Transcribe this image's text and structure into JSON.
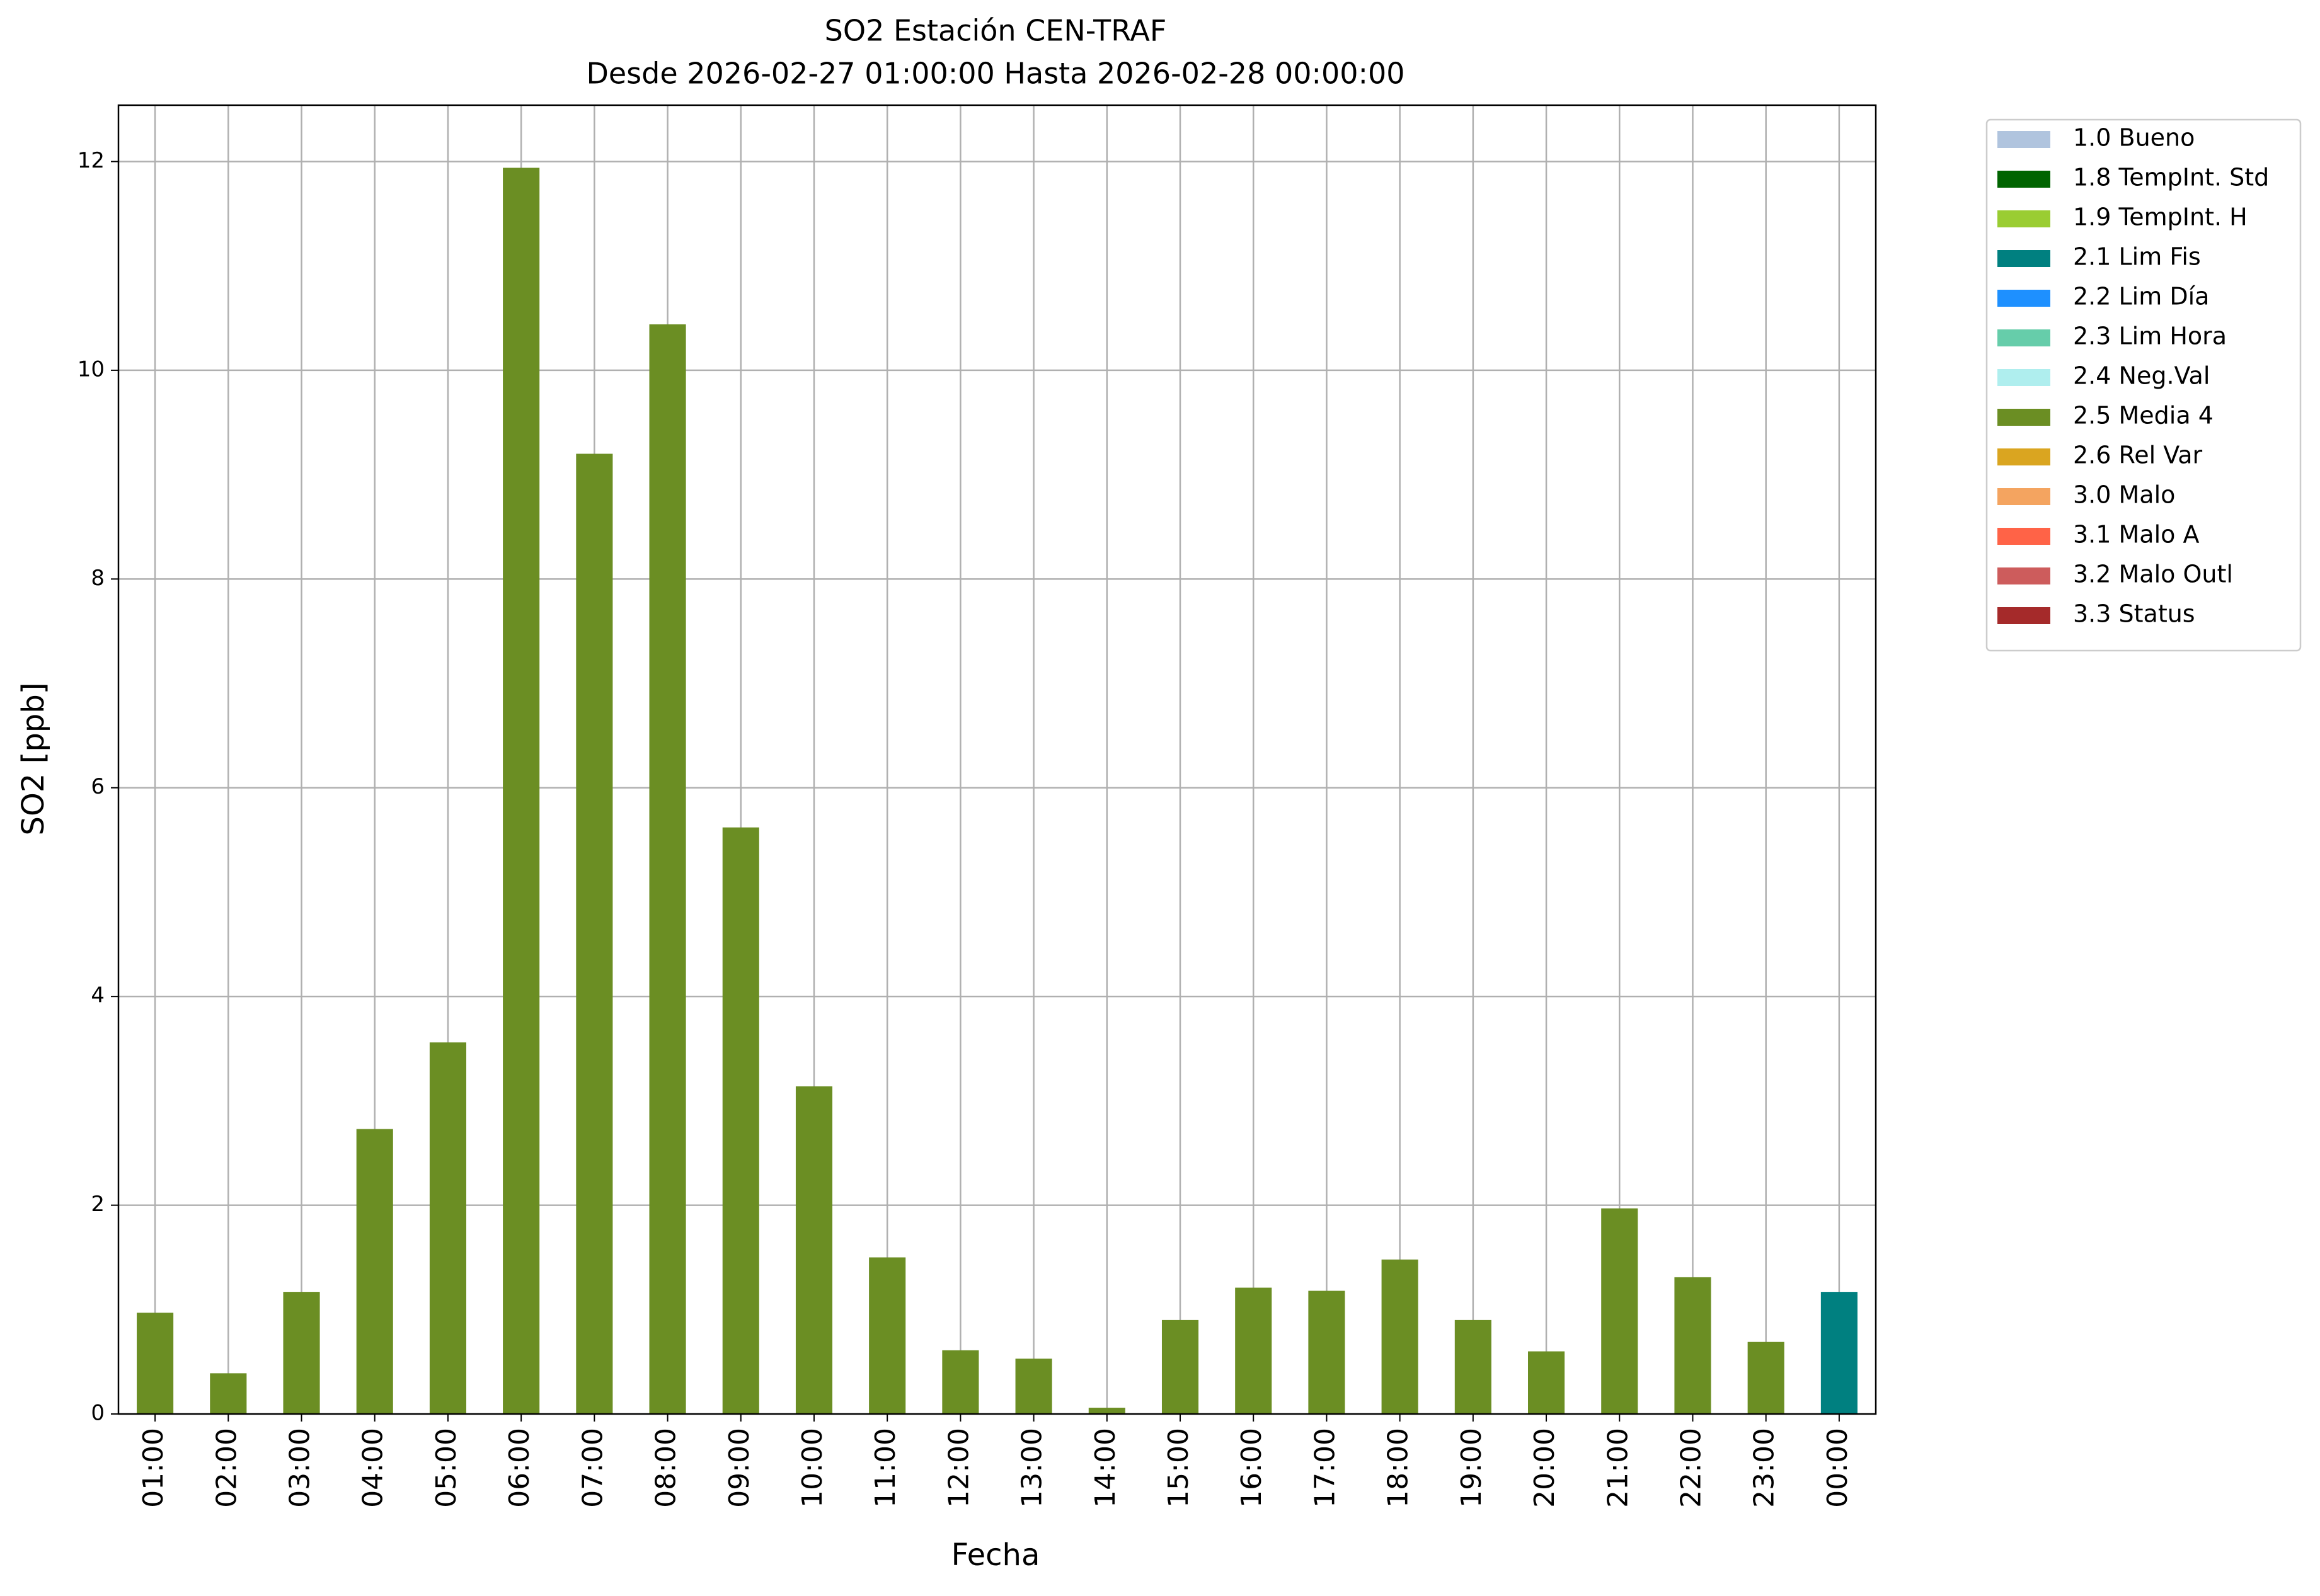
{
  "chart_data": {
    "type": "bar",
    "title": "SO2 Estación CEN-TRAF",
    "subtitle": "Desde 2026-02-27 01:00:00 Hasta 2026-02-28 00:00:00",
    "x_label": "Fecha",
    "y_label": "SO2 [ppb]",
    "categories": [
      "01:00",
      "02:00",
      "03:00",
      "04:00",
      "05:00",
      "06:00",
      "07:00",
      "08:00",
      "09:00",
      "10:00",
      "11:00",
      "12:00",
      "13:00",
      "14:00",
      "15:00",
      "16:00",
      "17:00",
      "18:00",
      "19:00",
      "20:00",
      "21:00",
      "22:00",
      "23:00",
      "00:00"
    ],
    "series": [
      {
        "name": "1.0 Bueno",
        "color": "#b0c4de",
        "values": [
          null,
          null,
          null,
          null,
          null,
          null,
          null,
          null,
          null,
          null,
          null,
          null,
          null,
          null,
          null,
          null,
          null,
          null,
          null,
          null,
          null,
          null,
          null,
          null
        ]
      },
      {
        "name": "1.8 TempInt. Std",
        "color": "#006400",
        "values": [
          null,
          null,
          null,
          null,
          null,
          null,
          null,
          null,
          null,
          null,
          null,
          null,
          null,
          null,
          null,
          null,
          null,
          null,
          null,
          null,
          null,
          null,
          null,
          null
        ]
      },
      {
        "name": "1.9 TempInt. H",
        "color": "#9acd32",
        "values": [
          null,
          null,
          null,
          null,
          null,
          null,
          null,
          null,
          null,
          null,
          null,
          null,
          null,
          null,
          null,
          null,
          null,
          null,
          null,
          null,
          null,
          null,
          null,
          null
        ]
      },
      {
        "name": "2.1 Lim Fis",
        "color": "#008080",
        "values": [
          null,
          null,
          null,
          null,
          null,
          null,
          null,
          null,
          null,
          null,
          null,
          null,
          null,
          null,
          null,
          null,
          null,
          null,
          null,
          null,
          null,
          null,
          null,
          1.17
        ]
      },
      {
        "name": "2.2 Lim Día",
        "color": "#1e90ff",
        "values": [
          null,
          null,
          null,
          null,
          null,
          null,
          null,
          null,
          null,
          null,
          null,
          null,
          null,
          null,
          null,
          null,
          null,
          null,
          null,
          null,
          null,
          null,
          null,
          null
        ]
      },
      {
        "name": "2.3 Lim Hora",
        "color": "#66cdaa",
        "values": [
          null,
          null,
          null,
          null,
          null,
          null,
          null,
          null,
          null,
          null,
          null,
          null,
          null,
          null,
          null,
          null,
          null,
          null,
          null,
          null,
          null,
          null,
          null,
          null
        ]
      },
      {
        "name": "2.4 Neg.Val",
        "color": "#afeeee",
        "values": [
          null,
          null,
          null,
          null,
          null,
          null,
          null,
          null,
          null,
          null,
          null,
          null,
          null,
          null,
          null,
          null,
          null,
          null,
          null,
          null,
          null,
          null,
          null,
          null
        ]
      },
      {
        "name": "2.5 Media 4",
        "color": "#6b8e23",
        "values": [
          0.97,
          0.39,
          1.17,
          2.73,
          3.56,
          11.94,
          9.2,
          10.44,
          5.62,
          3.14,
          1.5,
          0.61,
          0.53,
          0.06,
          0.9,
          1.21,
          1.18,
          1.48,
          0.9,
          0.6,
          1.97,
          1.31,
          0.69,
          null
        ]
      },
      {
        "name": "2.6 Rel Var",
        "color": "#daa520",
        "values": [
          null,
          null,
          null,
          null,
          null,
          null,
          null,
          null,
          null,
          null,
          null,
          null,
          null,
          null,
          null,
          null,
          null,
          null,
          null,
          null,
          null,
          null,
          null,
          null
        ]
      },
      {
        "name": "3.0 Malo",
        "color": "#f4a460",
        "values": [
          null,
          null,
          null,
          null,
          null,
          null,
          null,
          null,
          null,
          null,
          null,
          null,
          null,
          null,
          null,
          null,
          null,
          null,
          null,
          null,
          null,
          null,
          null,
          null
        ]
      },
      {
        "name": "3.1 Malo A",
        "color": "#ff6347",
        "values": [
          null,
          null,
          null,
          null,
          null,
          null,
          null,
          null,
          null,
          null,
          null,
          null,
          null,
          null,
          null,
          null,
          null,
          null,
          null,
          null,
          null,
          null,
          null,
          null
        ]
      },
      {
        "name": "3.2 Malo Outl",
        "color": "#cd5c5c",
        "values": [
          null,
          null,
          null,
          null,
          null,
          null,
          null,
          null,
          null,
          null,
          null,
          null,
          null,
          null,
          null,
          null,
          null,
          null,
          null,
          null,
          null,
          null,
          null,
          null
        ]
      },
      {
        "name": "3.3 Status",
        "color": "#a52a2a",
        "values": [
          null,
          null,
          null,
          null,
          null,
          null,
          null,
          null,
          null,
          null,
          null,
          null,
          null,
          null,
          null,
          null,
          null,
          null,
          null,
          null,
          null,
          null,
          null,
          null
        ]
      }
    ],
    "ylim": [
      0,
      12.54
    ],
    "yticks": [
      0,
      2,
      4,
      6,
      8,
      10,
      12
    ],
    "grid": true,
    "legend": "outside-right"
  }
}
